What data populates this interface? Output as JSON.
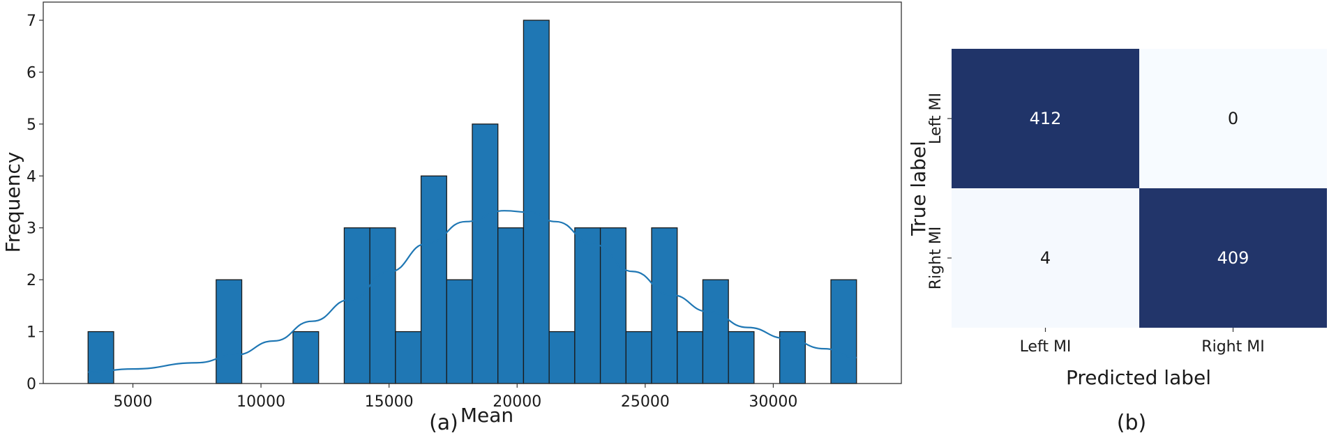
{
  "captions": {
    "a": "(a)",
    "b": "(b)"
  },
  "chart_data": [
    {
      "type": "bar",
      "subtype": "histogram-with-kde",
      "title": "",
      "xlabel": "Mean",
      "ylabel": "Frequency",
      "xlim": [
        1500,
        35000
      ],
      "ylim": [
        0,
        7.35
      ],
      "xticks": [
        5000,
        10000,
        15000,
        20000,
        25000,
        30000
      ],
      "yticks": [
        0,
        1,
        2,
        3,
        4,
        5,
        6,
        7
      ],
      "bin_start": 3250,
      "bin_width": 1000,
      "counts": [
        1,
        0,
        0,
        0,
        0,
        2,
        0,
        0,
        1,
        0,
        3,
        3,
        1,
        4,
        2,
        5,
        3,
        7,
        1,
        3,
        3,
        1,
        3,
        1,
        2,
        1,
        0,
        1,
        0,
        2
      ],
      "kde": {
        "x": [
          3250,
          5000,
          7500,
          9000,
          10500,
          12000,
          13500,
          15000,
          16500,
          18000,
          19500,
          20500,
          21500,
          23000,
          24500,
          26000,
          27500,
          29000,
          30500,
          32000,
          33250
        ],
        "y": [
          0.22,
          0.28,
          0.4,
          0.55,
          0.82,
          1.2,
          1.62,
          2.15,
          2.7,
          3.12,
          3.33,
          3.3,
          3.12,
          2.68,
          2.16,
          1.71,
          1.38,
          1.08,
          0.87,
          0.67,
          0.5
        ]
      },
      "bar_color": "#1f77b4",
      "grid": false,
      "legend": "none"
    },
    {
      "type": "heatmap",
      "subtype": "confusion-matrix",
      "title": "",
      "xlabel": "Predicted label",
      "ylabel": "True label",
      "x_categories": [
        "Left MI",
        "Right MI"
      ],
      "y_categories": [
        "Left MI",
        "Right MI"
      ],
      "values": [
        [
          412,
          0
        ],
        [
          4,
          409
        ]
      ],
      "colormap": "Blues",
      "high_color": "#203469",
      "low_color": "#f7fbff",
      "grid": false,
      "legend": "none"
    }
  ]
}
